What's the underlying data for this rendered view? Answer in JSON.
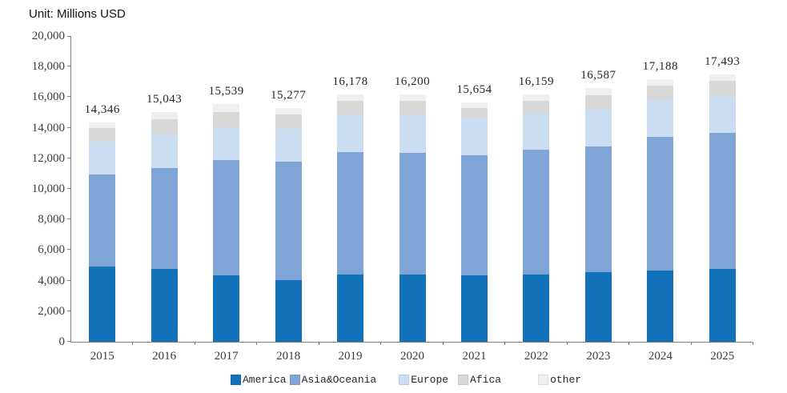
{
  "chart_data": {
    "type": "bar",
    "stacked": true,
    "title": "Unit: Millions USD",
    "categories": [
      "2015",
      "2016",
      "2017",
      "2018",
      "2019",
      "2020",
      "2021",
      "2022",
      "2023",
      "2024",
      "2025"
    ],
    "series": [
      {
        "name": "America",
        "color": "#1272b9",
        "values": [
          4900,
          4750,
          4350,
          4050,
          4400,
          4400,
          4350,
          4400,
          4550,
          4650,
          4750
        ]
      },
      {
        "name": "Asia&Oceania",
        "color": "#7fa4d6",
        "values": [
          6050,
          6600,
          7550,
          7750,
          8000,
          7950,
          7850,
          8150,
          8250,
          8750,
          8900
        ]
      },
      {
        "name": "Europe",
        "color": "#cbddf1",
        "values": [
          2150,
          2200,
          2150,
          2150,
          2450,
          2500,
          2400,
          2350,
          2400,
          2400,
          2450
        ]
      },
      {
        "name": "Afica",
        "color": "#d8d8d8",
        "values": [
          900,
          1000,
          1000,
          900,
          900,
          900,
          700,
          850,
          950,
          950,
          950
        ]
      },
      {
        "name": "other",
        "color": "#efefef",
        "values": [
          346,
          493,
          489,
          427,
          428,
          450,
          354,
          409,
          437,
          438,
          443
        ]
      }
    ],
    "totals_labels": [
      "14,346",
      "15,043",
      "15,539",
      "15,277",
      "16,178",
      "16,200",
      "15,654",
      "16,159",
      "16,587",
      "17,188",
      "17,493"
    ],
    "y_axis": {
      "min": 0,
      "max": 20000,
      "step": 2000,
      "tick_labels": [
        "0",
        "2,000",
        "4,000",
        "6,000",
        "8,000",
        "10,000",
        "12,000",
        "14,000",
        "16,000",
        "18,000",
        "20,000"
      ]
    },
    "grid": false,
    "legend_position": "bottom"
  }
}
